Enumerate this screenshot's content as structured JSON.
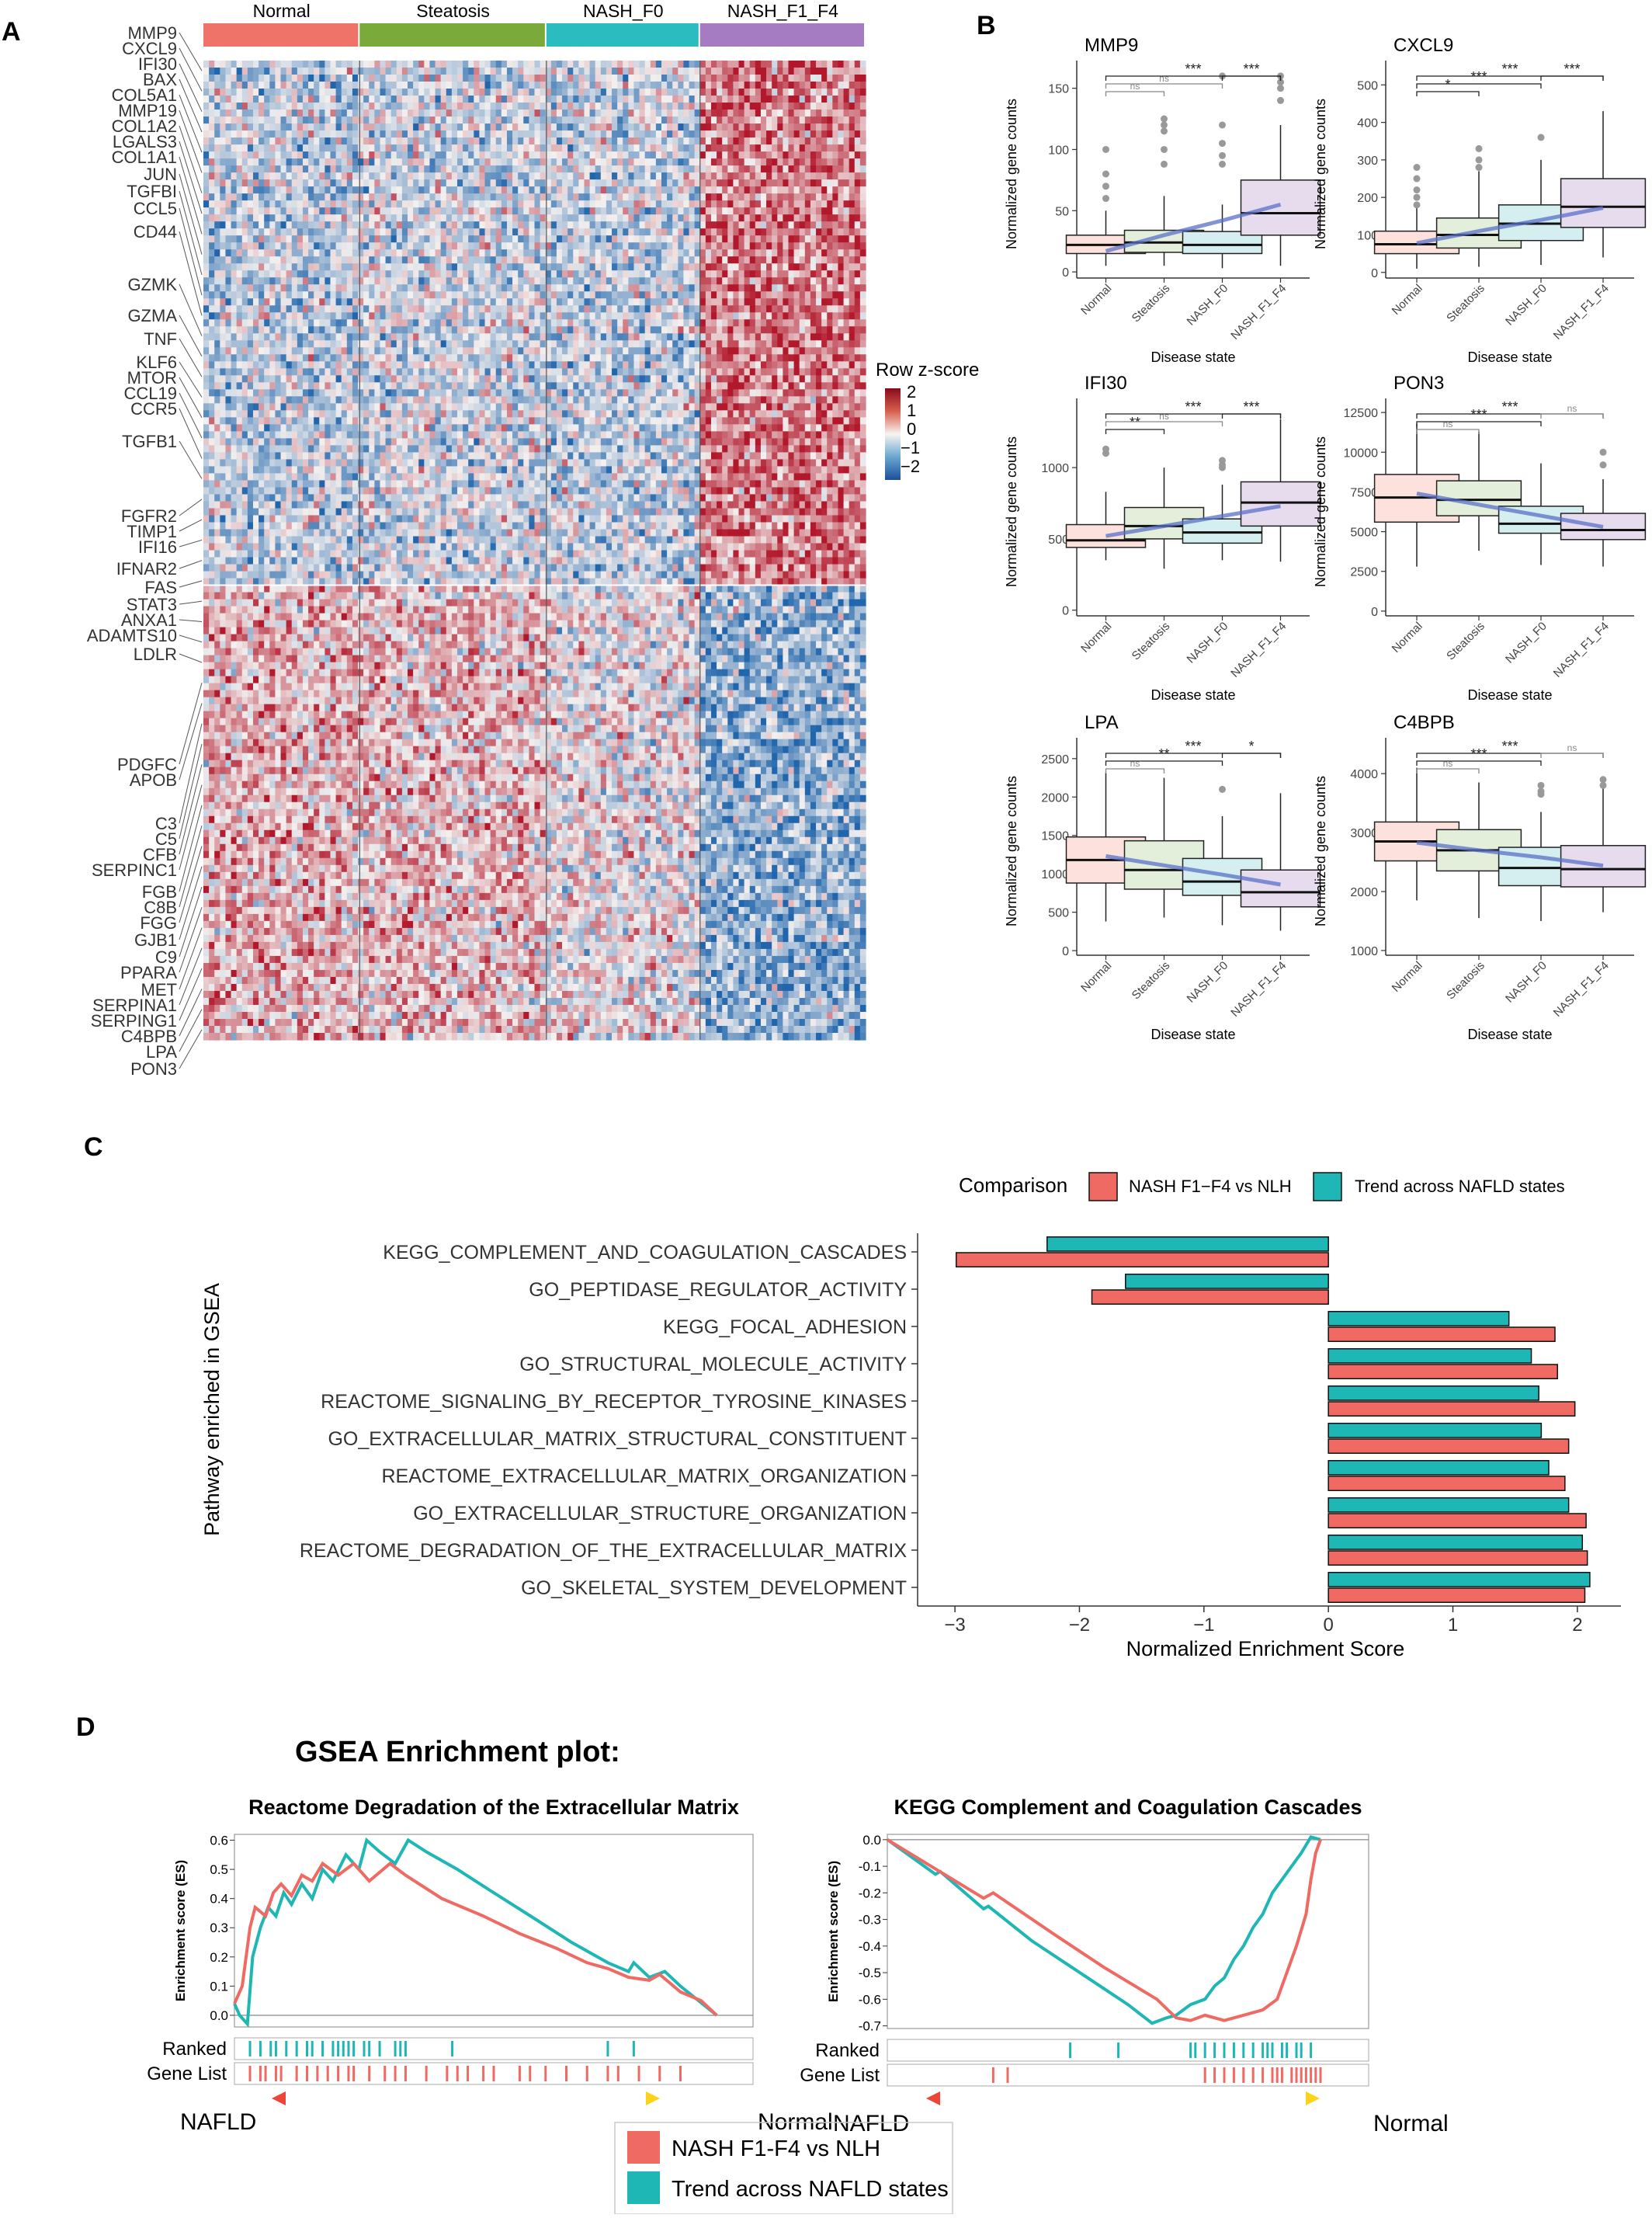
{
  "panels": {
    "A": "A",
    "B": "B",
    "C": "C",
    "D": "D"
  },
  "colors": {
    "normal": "#f0736a",
    "steatosis": "#7aab3a",
    "nash_f0": "#2bbcc0",
    "nash_f1_f4": "#a57cc2",
    "red": "#ef6a62",
    "teal": "#1fb6b6",
    "hm_low": "#2166ac",
    "hm_mid": "#f3f0ef",
    "hm_high": "#b2182b"
  },
  "heatmap": {
    "groups": [
      "Normal",
      "Steatosis",
      "NASH_F0",
      "NASH_F1_F4"
    ],
    "group_fraction": [
      0.236,
      0.282,
      0.232,
      0.25
    ],
    "legend_title": "Row z-score",
    "legend_ticks": [
      "2",
      "1",
      "0",
      "−1",
      "−2"
    ],
    "upregulated_fraction": 0.535,
    "gene_labels": [
      "MMP9",
      "CXCL9",
      "IFI30",
      "BAX",
      "COL5A1",
      "MMP19",
      "COL1A2",
      "LGALS3",
      "COL1A1",
      "JUN",
      "TGFBI",
      "CCL5",
      "CD44",
      "GZMK",
      "GZMA",
      "TNF",
      "KLF6",
      "MTOR",
      "CCL19",
      "CCR5",
      "TGFB1",
      "FGFR2",
      "TIMP1",
      "IFI16",
      "IFNAR2",
      "FAS",
      "STAT3",
      "ANXA1",
      "ADAMTS10",
      "LDLR",
      "PDGFC",
      "APOB",
      "C3",
      "C5",
      "CFB",
      "SERPINC1",
      "FGB",
      "C8B",
      "FGG",
      "GJB1",
      "C9",
      "PPARA",
      "MET",
      "SERPINA1",
      "SERPING1",
      "C4BPB",
      "LPA",
      "PON3"
    ]
  },
  "boxplots": {
    "categories": [
      "Normal",
      "Steatosis",
      "NASH_F0",
      "NASH_F1_F4"
    ],
    "xlabel": "Disease state",
    "ylabel": "Normalized gene counts",
    "panels": [
      {
        "gene": "MMP9",
        "ylim": [
          -5,
          165
        ],
        "yticks": [
          0,
          50,
          100,
          150
        ],
        "q1": [
          15,
          16,
          15,
          30
        ],
        "median": [
          22,
          24,
          22,
          48
        ],
        "q3": [
          30,
          34,
          33,
          75
        ],
        "wlo": [
          5,
          5,
          3,
          5
        ],
        "whi": [
          50,
          62,
          55,
          120
        ],
        "outliers": [
          [
            60,
            70,
            80,
            100
          ],
          [
            88,
            100,
            115,
            120,
            125
          ],
          [
            88,
            95,
            105,
            120,
            160
          ],
          [
            140,
            150,
            155,
            160
          ]
        ],
        "trend": [
          17,
          30,
          42,
          55
        ],
        "sig": [
          {
            "a": 0,
            "b": 1,
            "label": "ns"
          },
          {
            "a": 0,
            "b": 2,
            "label": "ns"
          },
          {
            "a": 0,
            "b": 3,
            "label": "***"
          },
          {
            "a": 2,
            "b": 3,
            "label": "***"
          }
        ]
      },
      {
        "gene": "CXCL9",
        "ylim": [
          -15,
          540
        ],
        "yticks": [
          0,
          100,
          200,
          300,
          400,
          500
        ],
        "q1": [
          50,
          65,
          85,
          120
        ],
        "median": [
          75,
          100,
          130,
          175
        ],
        "q3": [
          110,
          145,
          180,
          250
        ],
        "wlo": [
          10,
          15,
          20,
          40
        ],
        "whi": [
          175,
          270,
          300,
          430
        ],
        "outliers": [
          [
            180,
            200,
            220,
            250,
            280
          ],
          [
            280,
            300,
            330
          ],
          [
            360
          ],
          []
        ],
        "trend": [
          78,
          110,
          140,
          172
        ],
        "sig": [
          {
            "a": 0,
            "b": 1,
            "label": "*"
          },
          {
            "a": 0,
            "b": 2,
            "label": "***"
          },
          {
            "a": 0,
            "b": 3,
            "label": "***"
          },
          {
            "a": 2,
            "b": 3,
            "label": "***"
          }
        ]
      },
      {
        "gene": "IFI30",
        "ylim": [
          -40,
          1420
        ],
        "yticks": [
          0,
          500,
          1000
        ],
        "q1": [
          440,
          500,
          470,
          590
        ],
        "median": [
          490,
          590,
          545,
          755
        ],
        "q3": [
          600,
          720,
          640,
          900
        ],
        "wlo": [
          350,
          290,
          350,
          340
        ],
        "whi": [
          830,
          1000,
          880,
          1340
        ],
        "outliers": [
          [
            1100,
            1130
          ],
          [],
          [
            1000,
            1020,
            1050
          ],
          []
        ],
        "trend": [
          520,
          590,
          660,
          730
        ],
        "sig": [
          {
            "a": 0,
            "b": 1,
            "label": "**"
          },
          {
            "a": 0,
            "b": 2,
            "label": "ns"
          },
          {
            "a": 0,
            "b": 3,
            "label": "***"
          },
          {
            "a": 2,
            "b": 3,
            "label": "***"
          }
        ]
      },
      {
        "gene": "PON3",
        "ylim": [
          -300,
          12800
        ],
        "yticks": [
          0,
          2500,
          5000,
          7500,
          10000,
          12500
        ],
        "q1": [
          5600,
          6000,
          4900,
          4500
        ],
        "median": [
          7150,
          7000,
          5500,
          5100
        ],
        "q3": [
          8600,
          8200,
          6600,
          6150
        ],
        "wlo": [
          2800,
          3800,
          2900,
          2800
        ],
        "whi": [
          11800,
          11300,
          9300,
          8300
        ],
        "outliers": [
          [],
          [],
          [],
          [
            9200,
            10000
          ]
        ],
        "trend": [
          7400,
          6700,
          6000,
          5300
        ],
        "sig": [
          {
            "a": 0,
            "b": 1,
            "label": "ns"
          },
          {
            "a": 0,
            "b": 2,
            "label": "***"
          },
          {
            "a": 0,
            "b": 3,
            "label": "***"
          },
          {
            "a": 2,
            "b": 3,
            "label": "ns"
          }
        ]
      },
      {
        "gene": "LPA",
        "ylim": [
          -60,
          2650
        ],
        "yticks": [
          0,
          500,
          1000,
          1500,
          2000,
          2500
        ],
        "q1": [
          880,
          800,
          720,
          570
        ],
        "median": [
          1180,
          1050,
          900,
          760
        ],
        "q3": [
          1480,
          1430,
          1200,
          1050
        ],
        "wlo": [
          380,
          430,
          330,
          260
        ],
        "whi": [
          2320,
          2250,
          1750,
          2050
        ],
        "outliers": [
          [],
          [],
          [
            2100
          ],
          []
        ],
        "trend": [
          1230,
          1110,
          990,
          860
        ],
        "sig": [
          {
            "a": 0,
            "b": 1,
            "label": "ns"
          },
          {
            "a": 0,
            "b": 2,
            "label": "**"
          },
          {
            "a": 0,
            "b": 3,
            "label": "***"
          },
          {
            "a": 2,
            "b": 3,
            "label": "*"
          }
        ]
      },
      {
        "gene": "C4BPB",
        "ylim": [
          920,
          4450
        ],
        "yticks": [
          1000,
          2000,
          3000,
          4000
        ],
        "q1": [
          2520,
          2350,
          2100,
          2080
        ],
        "median": [
          2850,
          2700,
          2400,
          2380
        ],
        "q3": [
          3180,
          3050,
          2750,
          2780
        ],
        "wlo": [
          1850,
          1550,
          1500,
          1650
        ],
        "whi": [
          4100,
          3850,
          3350,
          3850
        ],
        "outliers": [
          [],
          [],
          [
            3650,
            3700,
            3800
          ],
          [
            3800,
            3900
          ]
        ],
        "trend": [
          2830,
          2700,
          2580,
          2440
        ],
        "sig": [
          {
            "a": 0,
            "b": 1,
            "label": "ns"
          },
          {
            "a": 0,
            "b": 2,
            "label": "***"
          },
          {
            "a": 0,
            "b": 3,
            "label": "***"
          },
          {
            "a": 2,
            "b": 3,
            "label": "ns"
          }
        ]
      }
    ]
  },
  "gsea_bar": {
    "legend_title": "Comparison",
    "legend_items": [
      "NASH F1−F4 vs NLH",
      "Trend across NAFLD states"
    ],
    "ylabel": "Pathway enriched in GSEA",
    "xlabel": "Normalized Enrichment Score",
    "xlim": [
      -3.3,
      2.35
    ],
    "xticks": [
      -3,
      -2,
      -1,
      0,
      1,
      2
    ],
    "xtick_labels": [
      "−3",
      "−2",
      "−1",
      "0",
      "1",
      "2"
    ],
    "pathways": [
      "KEGG_COMPLEMENT_AND_COAGULATION_CASCADES",
      "GO_PEPTIDASE_REGULATOR_ACTIVITY",
      "KEGG_FOCAL_ADHESION",
      "GO_STRUCTURAL_MOLECULE_ACTIVITY",
      "REACTOME_SIGNALING_BY_RECEPTOR_TYROSINE_KINASES",
      "GO_EXTRACELLULAR_MATRIX_STRUCTURAL_CONSTITUENT",
      "REACTOME_EXTRACELLULAR_MATRIX_ORGANIZATION",
      "GO_EXTRACELLULAR_STRUCTURE_ORGANIZATION",
      "REACTOME_DEGRADATION_OF_THE_EXTRACELLULAR_MATRIX",
      "GO_SKELETAL_SYSTEM_DEVELOPMENT"
    ],
    "nash_vs_nlh": [
      -2.99,
      -1.9,
      1.82,
      1.84,
      1.98,
      1.93,
      1.9,
      2.07,
      2.08,
      2.06
    ],
    "trend": [
      -2.26,
      -1.63,
      1.45,
      1.63,
      1.69,
      1.71,
      1.77,
      1.93,
      2.04,
      2.1
    ]
  },
  "gsea_plot": {
    "title": "GSEA Enrichment plot:",
    "ylabel": "Enrichment score (ES)",
    "ranked": "Ranked",
    "gene_list": "Gene List",
    "nafld": "NAFLD",
    "normal": "Normal",
    "legend_items": [
      "NASH F1-F4 vs NLH",
      "Trend across NAFLD states"
    ],
    "left": {
      "title": "Reactome Degradation of the Extracellular Matrix",
      "ylim": [
        -0.04,
        0.62
      ],
      "yticks": [
        0,
        0.1,
        0.2,
        0.3,
        0.4,
        0.5,
        0.6
      ],
      "ytick_labels": [
        "0.0",
        "0.1",
        "0.2",
        "0.3",
        "0.4",
        "0.5",
        "0.6"
      ],
      "teal": [
        [
          0,
          0.04
        ],
        [
          0.01,
          0.0
        ],
        [
          0.025,
          -0.03
        ],
        [
          0.035,
          0.2
        ],
        [
          0.05,
          0.3
        ],
        [
          0.065,
          0.37
        ],
        [
          0.08,
          0.34
        ],
        [
          0.095,
          0.42
        ],
        [
          0.11,
          0.38
        ],
        [
          0.13,
          0.45
        ],
        [
          0.15,
          0.4
        ],
        [
          0.17,
          0.5
        ],
        [
          0.19,
          0.46
        ],
        [
          0.215,
          0.55
        ],
        [
          0.24,
          0.5
        ],
        [
          0.255,
          0.6
        ],
        [
          0.28,
          0.56
        ],
        [
          0.31,
          0.52
        ],
        [
          0.335,
          0.6
        ],
        [
          0.37,
          0.56
        ],
        [
          0.43,
          0.5
        ],
        [
          0.5,
          0.42
        ],
        [
          0.58,
          0.33
        ],
        [
          0.65,
          0.25
        ],
        [
          0.7,
          0.2
        ],
        [
          0.72,
          0.18
        ],
        [
          0.76,
          0.15
        ],
        [
          0.77,
          0.18
        ],
        [
          0.8,
          0.13
        ],
        [
          0.83,
          0.15
        ],
        [
          0.86,
          0.1
        ],
        [
          0.93,
          0.0
        ]
      ],
      "red": [
        [
          0,
          0.04
        ],
        [
          0.015,
          0.1
        ],
        [
          0.03,
          0.3
        ],
        [
          0.04,
          0.37
        ],
        [
          0.06,
          0.34
        ],
        [
          0.075,
          0.42
        ],
        [
          0.09,
          0.45
        ],
        [
          0.11,
          0.41
        ],
        [
          0.13,
          0.48
        ],
        [
          0.15,
          0.46
        ],
        [
          0.17,
          0.52
        ],
        [
          0.2,
          0.48
        ],
        [
          0.23,
          0.52
        ],
        [
          0.26,
          0.46
        ],
        [
          0.3,
          0.52
        ],
        [
          0.33,
          0.48
        ],
        [
          0.4,
          0.4
        ],
        [
          0.48,
          0.34
        ],
        [
          0.55,
          0.28
        ],
        [
          0.62,
          0.23
        ],
        [
          0.68,
          0.18
        ],
        [
          0.72,
          0.16
        ],
        [
          0.76,
          0.13
        ],
        [
          0.8,
          0.12
        ],
        [
          0.82,
          0.14
        ],
        [
          0.86,
          0.08
        ],
        [
          0.9,
          0.05
        ],
        [
          0.93,
          0.0
        ]
      ],
      "teal_ticks": [
        0.03,
        0.05,
        0.07,
        0.08,
        0.1,
        0.12,
        0.14,
        0.15,
        0.17,
        0.19,
        0.2,
        0.21,
        0.22,
        0.23,
        0.25,
        0.26,
        0.28,
        0.31,
        0.32,
        0.33,
        0.42,
        0.72,
        0.77
      ],
      "red_ticks": [
        0.03,
        0.05,
        0.06,
        0.08,
        0.09,
        0.12,
        0.14,
        0.16,
        0.18,
        0.2,
        0.22,
        0.23,
        0.26,
        0.29,
        0.31,
        0.33,
        0.37,
        0.41,
        0.43,
        0.45,
        0.48,
        0.5,
        0.55,
        0.57,
        0.6,
        0.64,
        0.68,
        0.72,
        0.74,
        0.78,
        0.82,
        0.86
      ]
    },
    "right": {
      "title": "KEGG Complement and Coagulation Cascades",
      "ylim": [
        -0.71,
        0.02
      ],
      "yticks": [
        0,
        -0.1,
        -0.2,
        -0.3,
        -0.4,
        -0.5,
        -0.6,
        -0.7
      ],
      "ytick_labels": [
        "0.0",
        "-0.1",
        "-0.2",
        "-0.3",
        "-0.4",
        "-0.5",
        "-0.6",
        "-0.7"
      ],
      "teal": [
        [
          0,
          0
        ],
        [
          0.1,
          -0.13
        ],
        [
          0.11,
          -0.12
        ],
        [
          0.2,
          -0.26
        ],
        [
          0.21,
          -0.25
        ],
        [
          0.3,
          -0.38
        ],
        [
          0.4,
          -0.5
        ],
        [
          0.5,
          -0.62
        ],
        [
          0.55,
          -0.69
        ],
        [
          0.58,
          -0.67
        ],
        [
          0.6,
          -0.66
        ],
        [
          0.63,
          -0.62
        ],
        [
          0.66,
          -0.6
        ],
        [
          0.68,
          -0.55
        ],
        [
          0.7,
          -0.52
        ],
        [
          0.72,
          -0.45
        ],
        [
          0.74,
          -0.4
        ],
        [
          0.76,
          -0.33
        ],
        [
          0.78,
          -0.28
        ],
        [
          0.8,
          -0.2
        ],
        [
          0.82,
          -0.15
        ],
        [
          0.84,
          -0.1
        ],
        [
          0.86,
          -0.05
        ],
        [
          0.88,
          0.01
        ],
        [
          0.9,
          0
        ]
      ],
      "red": [
        [
          0,
          0
        ],
        [
          0.2,
          -0.22
        ],
        [
          0.22,
          -0.2
        ],
        [
          0.35,
          -0.36
        ],
        [
          0.45,
          -0.48
        ],
        [
          0.56,
          -0.6
        ],
        [
          0.6,
          -0.67
        ],
        [
          0.63,
          -0.68
        ],
        [
          0.66,
          -0.66
        ],
        [
          0.7,
          -0.68
        ],
        [
          0.74,
          -0.66
        ],
        [
          0.78,
          -0.64
        ],
        [
          0.81,
          -0.6
        ],
        [
          0.83,
          -0.5
        ],
        [
          0.85,
          -0.4
        ],
        [
          0.87,
          -0.28
        ],
        [
          0.88,
          -0.15
        ],
        [
          0.89,
          -0.05
        ],
        [
          0.9,
          0
        ]
      ],
      "teal_ticks": [
        0.38,
        0.48,
        0.63,
        0.64,
        0.66,
        0.68,
        0.7,
        0.72,
        0.74,
        0.76,
        0.78,
        0.79,
        0.8,
        0.82,
        0.83,
        0.85,
        0.86,
        0.88
      ],
      "red_ticks": [
        0.22,
        0.25,
        0.66,
        0.68,
        0.7,
        0.72,
        0.74,
        0.76,
        0.78,
        0.8,
        0.81,
        0.82,
        0.84,
        0.85,
        0.86,
        0.87,
        0.88,
        0.89,
        0.9
      ]
    }
  }
}
